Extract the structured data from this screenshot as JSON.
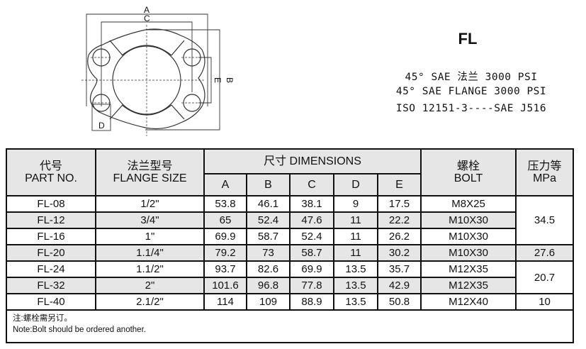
{
  "drawing": {
    "labels": {
      "a": "A",
      "b": "B",
      "c": "C",
      "d": "D",
      "e": "E"
    }
  },
  "title": "FL",
  "spec_lines": [
    "45° SAE 法兰 3000 PSI",
    "45° SAE FLANGE 3000 PSI",
    "ISO 12151-3----SAE J516"
  ],
  "table": {
    "headers": {
      "part_cn": "代号",
      "part_en": "PART NO.",
      "flange_cn": "法兰型号",
      "flange_en": "FLANGE SIZE",
      "dimensions": "尺寸 DIMENSIONS",
      "dim_cols": [
        "A",
        "B",
        "C",
        "D",
        "E"
      ],
      "bolt_cn": "螺栓",
      "bolt_en": "BOLT",
      "pressure_cn": "压力等",
      "pressure_en": "MPa"
    },
    "rows": [
      {
        "part": "FL-08",
        "size": "1/2\"",
        "a": "53.8",
        "b": "46.1",
        "c": "38.1",
        "d": "9",
        "e": "17.5",
        "bolt": "M8X25"
      },
      {
        "part": "FL-12",
        "size": "3/4\"",
        "a": "65",
        "b": "52.4",
        "c": "47.6",
        "d": "11",
        "e": "22.2",
        "bolt": "M10X30"
      },
      {
        "part": "FL-16",
        "size": "1\"",
        "a": "69.9",
        "b": "58.7",
        "c": "52.4",
        "d": "11",
        "e": "26.2",
        "bolt": "M10X30"
      },
      {
        "part": "FL-20",
        "size": "1.1/4\"",
        "a": "79.2",
        "b": "73",
        "c": "58.7",
        "d": "11",
        "e": "30.2",
        "bolt": "M10X30"
      },
      {
        "part": "FL-24",
        "size": "1.1/2\"",
        "a": "93.7",
        "b": "82.6",
        "c": "69.9",
        "d": "13.5",
        "e": "35.7",
        "bolt": "M12X35"
      },
      {
        "part": "FL-32",
        "size": "2\"",
        "a": "101.6",
        "b": "96.8",
        "c": "77.8",
        "d": "13.5",
        "e": "42.9",
        "bolt": "M12X35"
      },
      {
        "part": "FL-40",
        "size": "2.1/2\"",
        "a": "114",
        "b": "109",
        "c": "88.9",
        "d": "13.5",
        "e": "50.8",
        "bolt": "M12X40"
      }
    ],
    "pressure_groups": [
      "34.5",
      "27.6",
      "20.7",
      "10"
    ],
    "note_cn": "注:螺栓需另订。",
    "note_en": "Note:Bolt should be ordered another."
  },
  "colors": {
    "header_bg": "#e6e6e6",
    "stripe_bg": "#e6e6e6",
    "border": "#111111"
  }
}
